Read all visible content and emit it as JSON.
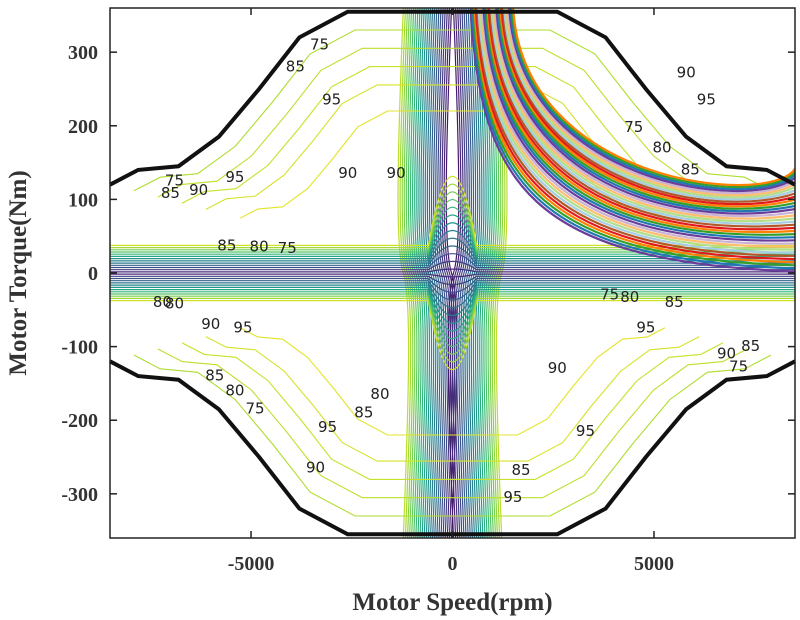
{
  "chart_data": {
    "type": "contour",
    "xlabel": "Motor Speed(rpm)",
    "ylabel": "Motor Torque(Nm)",
    "xlim": [
      -8500,
      8500
    ],
    "ylim": [
      -360,
      360
    ],
    "x_ticks": [
      -5000,
      0,
      5000
    ],
    "y_ticks": [
      300,
      200,
      100,
      0,
      -100,
      -200,
      -300
    ],
    "grid": false,
    "legend": "none",
    "max_torque_envelope": {
      "speed": [
        -8500,
        -7800,
        -6800,
        -5800,
        -4800,
        -3800,
        -2600,
        2600,
        3800,
        4800,
        5800,
        6800,
        7800,
        8500
      ],
      "torque": [
        120,
        140,
        145,
        185,
        250,
        320,
        355,
        355,
        320,
        250,
        185,
        145,
        140,
        120
      ]
    },
    "contour_levels": [
      75,
      80,
      85,
      90,
      95
    ],
    "contour_labels": [
      {
        "speed": -3300,
        "torque": 310,
        "label": "75"
      },
      {
        "speed": -3900,
        "torque": 280,
        "label": "85"
      },
      {
        "speed": -3000,
        "torque": 235,
        "label": "95"
      },
      {
        "speed": -2600,
        "torque": 135,
        "label": "90"
      },
      {
        "speed": -5400,
        "torque": 130,
        "label": "95"
      },
      {
        "speed": -6900,
        "torque": 125,
        "label": "75"
      },
      {
        "speed": -7000,
        "torque": 108,
        "label": "85"
      },
      {
        "speed": -6300,
        "torque": 112,
        "label": "90"
      },
      {
        "speed": -5600,
        "torque": 37,
        "label": "85"
      },
      {
        "speed": -4800,
        "torque": 35,
        "label": "80"
      },
      {
        "speed": -4100,
        "torque": 33,
        "label": "75"
      },
      {
        "speed": -7200,
        "torque": -40,
        "label": "80"
      },
      {
        "speed": -6900,
        "torque": -42,
        "label": "80"
      },
      {
        "speed": -6000,
        "torque": -70,
        "label": "90"
      },
      {
        "speed": -5200,
        "torque": -75,
        "label": "95"
      },
      {
        "speed": -5900,
        "torque": -140,
        "label": "85"
      },
      {
        "speed": -5400,
        "torque": -160,
        "label": "80"
      },
      {
        "speed": -4900,
        "torque": -185,
        "label": "75"
      },
      {
        "speed": -3100,
        "torque": -210,
        "label": "95"
      },
      {
        "speed": -3400,
        "torque": -265,
        "label": "90"
      },
      {
        "speed": -2200,
        "torque": -190,
        "label": "85"
      },
      {
        "speed": -1800,
        "torque": -165,
        "label": "80"
      },
      {
        "speed": 5800,
        "torque": 272,
        "label": "90"
      },
      {
        "speed": 6300,
        "torque": 235,
        "label": "95"
      },
      {
        "speed": 4500,
        "torque": 198,
        "label": "75"
      },
      {
        "speed": 5200,
        "torque": 170,
        "label": "80"
      },
      {
        "speed": 5900,
        "torque": 140,
        "label": "85"
      },
      {
        "speed": 3900,
        "torque": -30,
        "label": "75"
      },
      {
        "speed": 4400,
        "torque": -33,
        "label": "80"
      },
      {
        "speed": 5500,
        "torque": -40,
        "label": "85"
      },
      {
        "speed": 4800,
        "torque": -75,
        "label": "95"
      },
      {
        "speed": 6800,
        "torque": -110,
        "label": "90"
      },
      {
        "speed": 7400,
        "torque": -100,
        "label": "85"
      },
      {
        "speed": 7100,
        "torque": -128,
        "label": "75"
      },
      {
        "speed": 2600,
        "torque": -130,
        "label": "90"
      },
      {
        "speed": 3300,
        "torque": -215,
        "label": "95"
      },
      {
        "speed": 1700,
        "torque": -268,
        "label": "85"
      },
      {
        "speed": 1500,
        "torque": -305,
        "label": "95"
      },
      {
        "speed": -1400,
        "torque": 135,
        "label": "90"
      }
    ]
  }
}
